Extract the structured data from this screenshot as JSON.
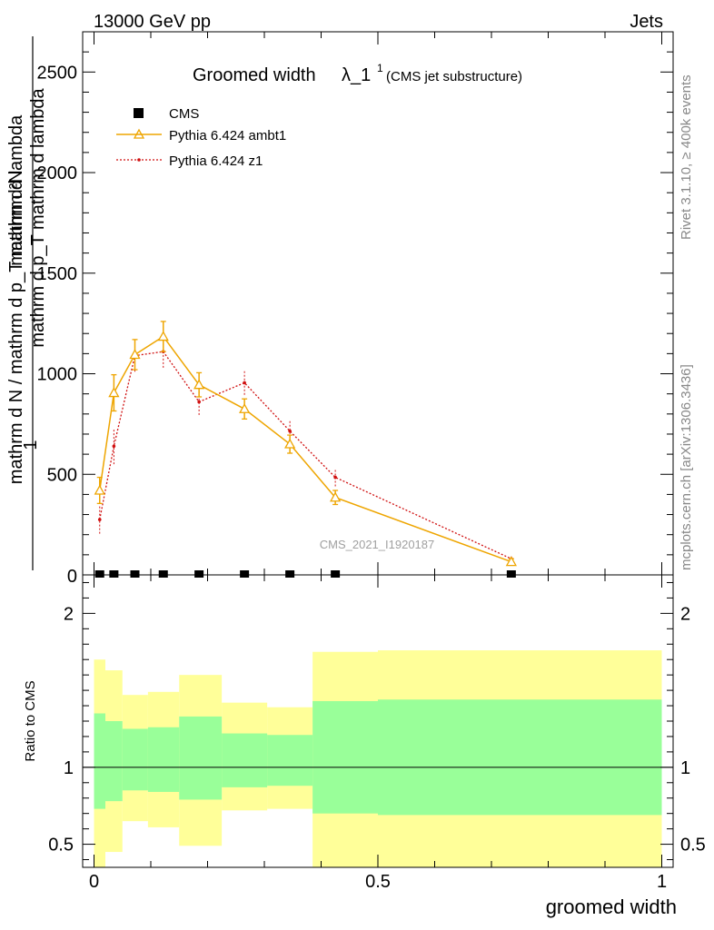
{
  "header": {
    "left": "13000 GeV pp",
    "right": "Jets"
  },
  "side_labels": {
    "rivet": "Rivet 3.1.10, ≥ 400k events",
    "mcplots": "mcplots.cern.ch [arXiv:1306.3436]"
  },
  "colors": {
    "cms": "#000000",
    "ambt1": "#eea500",
    "z1": "#d01010",
    "band_outer": "#ffff99",
    "band_inner": "#99ff99"
  },
  "chart_data": [
    {
      "type": "line",
      "title_main": "Groomed width",
      "title_lambda": "λ_1",
      "title_sup": "1",
      "title_note": "(CMS jet substructure)",
      "ylabel_top": "1",
      "ylabel_top_num": "mathrm d²N",
      "ylabel_top_den": "mathrm d p_T mathrm d lambda",
      "ylabel_bottom": "mathrm d N / mathrm d p_T mathrm d lambda",
      "watermark": "CMS_2021_I1920187",
      "xlim": [
        -0.02,
        1.02
      ],
      "ylim": [
        0,
        2700
      ],
      "yticks": [
        500,
        1000,
        1500,
        2000,
        2500
      ],
      "yticklabels": [
        "500",
        "1000",
        "1500",
        "2000",
        "2500"
      ],
      "ytick0_label": "0",
      "legend": [
        "CMS",
        "Pythia 6.424 ambt1",
        "Pythia 6.424 z1"
      ],
      "legend_position": "top-left",
      "series": [
        {
          "name": "CMS",
          "marker": "square",
          "x": [
            0.01,
            0.035,
            0.072,
            0.122,
            0.185,
            0.265,
            0.345,
            0.425,
            0.735
          ],
          "values": [
            0,
            0,
            0,
            0,
            0,
            0,
            0,
            0,
            0
          ]
        },
        {
          "name": "Pythia 6.424 ambt1",
          "marker": "triangle",
          "x": [
            0.01,
            0.035,
            0.072,
            0.122,
            0.185,
            0.265,
            0.345,
            0.425,
            0.735
          ],
          "values": [
            420,
            905,
            1095,
            1185,
            945,
            825,
            650,
            385,
            65
          ],
          "errors": [
            65,
            90,
            75,
            75,
            60,
            50,
            45,
            35,
            15
          ]
        },
        {
          "name": "Pythia 6.424 z1",
          "marker": "dot",
          "x": [
            0.01,
            0.035,
            0.072,
            0.122,
            0.185,
            0.265,
            0.345,
            0.425,
            0.735
          ],
          "values": [
            275,
            640,
            1090,
            1110,
            860,
            955,
            715,
            485,
            80
          ],
          "errors": [
            70,
            90,
            80,
            80,
            65,
            60,
            50,
            45,
            15
          ]
        }
      ]
    },
    {
      "type": "area",
      "ylabel": "Ratio to CMS",
      "xlabel": "groomed width",
      "xlim": [
        -0.02,
        1.02
      ],
      "ylim": [
        0.35,
        2.25
      ],
      "xticks": [
        0,
        0.5,
        1
      ],
      "xticklabels": [
        "0",
        "0.5",
        "1"
      ],
      "yticks": [
        0.5,
        1,
        2
      ],
      "yticklabels": [
        "0.5",
        "1",
        "2"
      ],
      "reference_line": 1,
      "bins": [
        {
          "x0": 0.0,
          "x1": 0.02,
          "inner": [
            0.73,
            1.35
          ],
          "outer": [
            0.35,
            1.7
          ]
        },
        {
          "x0": 0.02,
          "x1": 0.05,
          "inner": [
            0.78,
            1.3
          ],
          "outer": [
            0.45,
            1.63
          ]
        },
        {
          "x0": 0.05,
          "x1": 0.095,
          "inner": [
            0.85,
            1.25
          ],
          "outer": [
            0.65,
            1.47
          ]
        },
        {
          "x0": 0.095,
          "x1": 0.15,
          "inner": [
            0.84,
            1.26
          ],
          "outer": [
            0.61,
            1.49
          ]
        },
        {
          "x0": 0.15,
          "x1": 0.225,
          "inner": [
            0.79,
            1.33
          ],
          "outer": [
            0.49,
            1.6
          ]
        },
        {
          "x0": 0.225,
          "x1": 0.305,
          "inner": [
            0.87,
            1.22
          ],
          "outer": [
            0.72,
            1.42
          ]
        },
        {
          "x0": 0.305,
          "x1": 0.385,
          "inner": [
            0.88,
            1.21
          ],
          "outer": [
            0.73,
            1.39
          ]
        },
        {
          "x0": 0.385,
          "x1": 0.5,
          "inner": [
            0.7,
            1.43
          ],
          "outer": [
            0.35,
            1.75
          ]
        },
        {
          "x0": 0.5,
          "x1": 1.0,
          "inner": [
            0.69,
            1.44
          ],
          "outer": [
            0.35,
            1.76
          ]
        }
      ]
    }
  ]
}
